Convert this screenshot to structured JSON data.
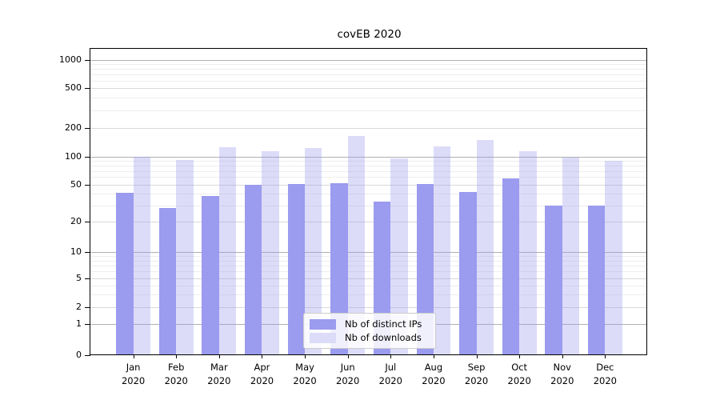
{
  "chart_data": {
    "type": "bar",
    "title": "covEB 2020",
    "categories": [
      "Jan",
      "Feb",
      "Mar",
      "Apr",
      "May",
      "Jun",
      "Jul",
      "Aug",
      "Sep",
      "Oct",
      "Nov",
      "Dec"
    ],
    "year": "2020",
    "series": [
      {
        "name": "Nb of distinct IPs",
        "color": "#9b9bef",
        "bar_fill": "#9b9bef",
        "values": [
          41,
          28,
          38,
          50,
          51,
          52,
          33,
          51,
          42,
          58,
          30,
          30
        ]
      },
      {
        "name": "Nb of downloads",
        "color": "#dcdcf8",
        "bar_fill": "rgba(155,155,239,0.35)",
        "values": [
          100,
          92,
          126,
          114,
          124,
          165,
          96,
          129,
          150,
          113,
          97,
          90
        ]
      }
    ],
    "y_ticks": [
      0,
      1,
      2,
      5,
      10,
      20,
      50,
      100,
      200,
      500,
      1000
    ],
    "y_scale": "symlog-like (linear 0-1, compressed log below 10, log decades above)",
    "ylim": [
      0,
      1300
    ],
    "xlabel": "",
    "ylabel": "",
    "grid": true,
    "legend_position": "lower center inside plot"
  },
  "colors": {
    "grid_power10": "#b0b0b0",
    "grid_major": "#d9d9d9",
    "grid_minor": "#eeeeee",
    "spine": "#000000",
    "text": "#000000",
    "background": "#ffffff"
  }
}
